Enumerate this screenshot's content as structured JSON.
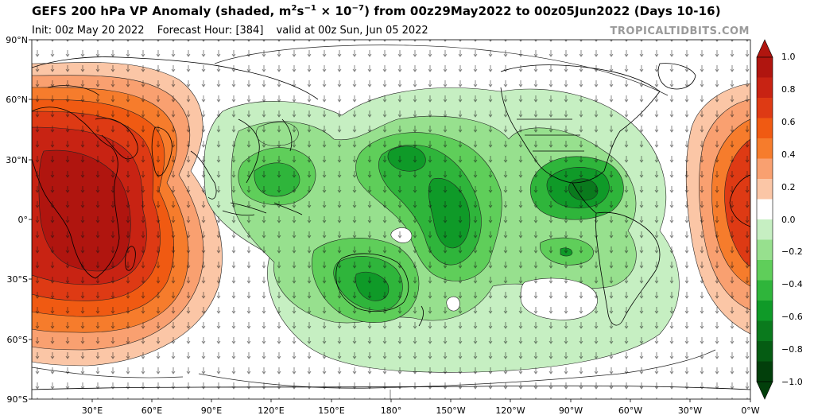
{
  "header": {
    "title_pre": "GEFS 200 hPa VP Anomaly (shaded, m",
    "title_sup1": "2",
    "title_mid": "s",
    "title_sup2": "−1",
    "title_mid2": " × 10",
    "title_sup3": "−7",
    "title_post": ") from 00z29May2022 to 00z05Jun2022 (Days 10-16)",
    "init": "Init: 00z May 20 2022",
    "forecast_hour": "Forecast Hour: [384]",
    "valid": "valid at 00z Sun, Jun 05 2022",
    "brand": "TROPICALTIDBITS.COM"
  },
  "map": {
    "lat_labels": [
      "90°N",
      "60°N",
      "30°N",
      "0°",
      "30°S",
      "60°S",
      "90°S"
    ],
    "lon_labels": [
      "30°E",
      "60°E",
      "90°E",
      "120°E",
      "150°E",
      "180°",
      "150°W",
      "120°W",
      "90°W",
      "60°W",
      "30°W",
      "0°W"
    ],
    "features": [
      {
        "name": "positive-anomaly-africa-indian-ocean",
        "sign": "positive",
        "peak": 0.9
      },
      {
        "name": "positive-anomaly-atlantic-edge",
        "sign": "positive",
        "peak": 0.8
      },
      {
        "name": "negative-anomaly-central-pacific",
        "sign": "negative",
        "peak": -0.7
      },
      {
        "name": "negative-anomaly-caribbean",
        "sign": "negative",
        "peak": -0.7
      },
      {
        "name": "negative-anomaly-australia",
        "sign": "negative",
        "peak": -0.7
      },
      {
        "name": "negative-anomaly-east-asia",
        "sign": "negative",
        "peak": -0.6
      }
    ]
  },
  "colorbar": {
    "labels": [
      "1.0",
      "0.8",
      "0.6",
      "0.4",
      "0.2",
      "0.0",
      "−0.2",
      "−0.4",
      "−0.6",
      "−0.8",
      "−1.0"
    ],
    "colors": [
      "#b0150f",
      "#c82313",
      "#de3a14",
      "#f05a12",
      "#f67c2c",
      "#f9a070",
      "#fbc6a6",
      "#ffffff",
      "#c6efc2",
      "#97e08e",
      "#5fce5a",
      "#2fb53b",
      "#0f9a28",
      "#0a7a1d",
      "#055c13",
      "#023f0b"
    ]
  }
}
